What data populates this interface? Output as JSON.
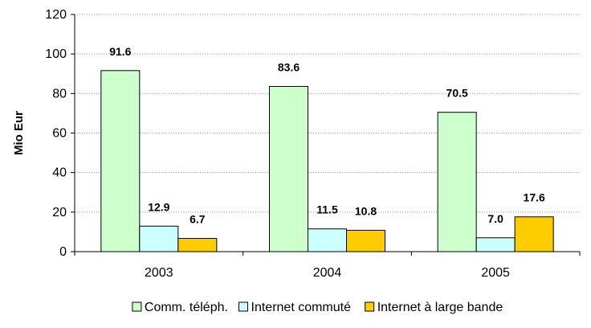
{
  "chart_data": {
    "type": "bar",
    "categories": [
      "2003",
      "2004",
      "2005"
    ],
    "series": [
      {
        "name": "Comm. téléph.",
        "values": [
          91.6,
          83.6,
          70.5
        ],
        "color": "#ccffcc"
      },
      {
        "name": "Internet commuté",
        "values": [
          12.9,
          11.5,
          7.0
        ],
        "color": "#ccffff"
      },
      {
        "name": "Internet à large bande",
        "values": [
          6.7,
          10.8,
          17.6
        ],
        "color": "#ffcc00"
      }
    ],
    "data_labels": [
      [
        "91.6",
        "83.6",
        "70.5"
      ],
      [
        "12.9",
        "11.5",
        "7.0"
      ],
      [
        "6.7",
        "10.8",
        "17.6"
      ]
    ],
    "ylabel": "Mio Eur",
    "ylim": [
      0,
      120
    ],
    "yticks": [
      0,
      20,
      40,
      60,
      80,
      100,
      120
    ],
    "grid": true,
    "legend_position": "bottom"
  }
}
